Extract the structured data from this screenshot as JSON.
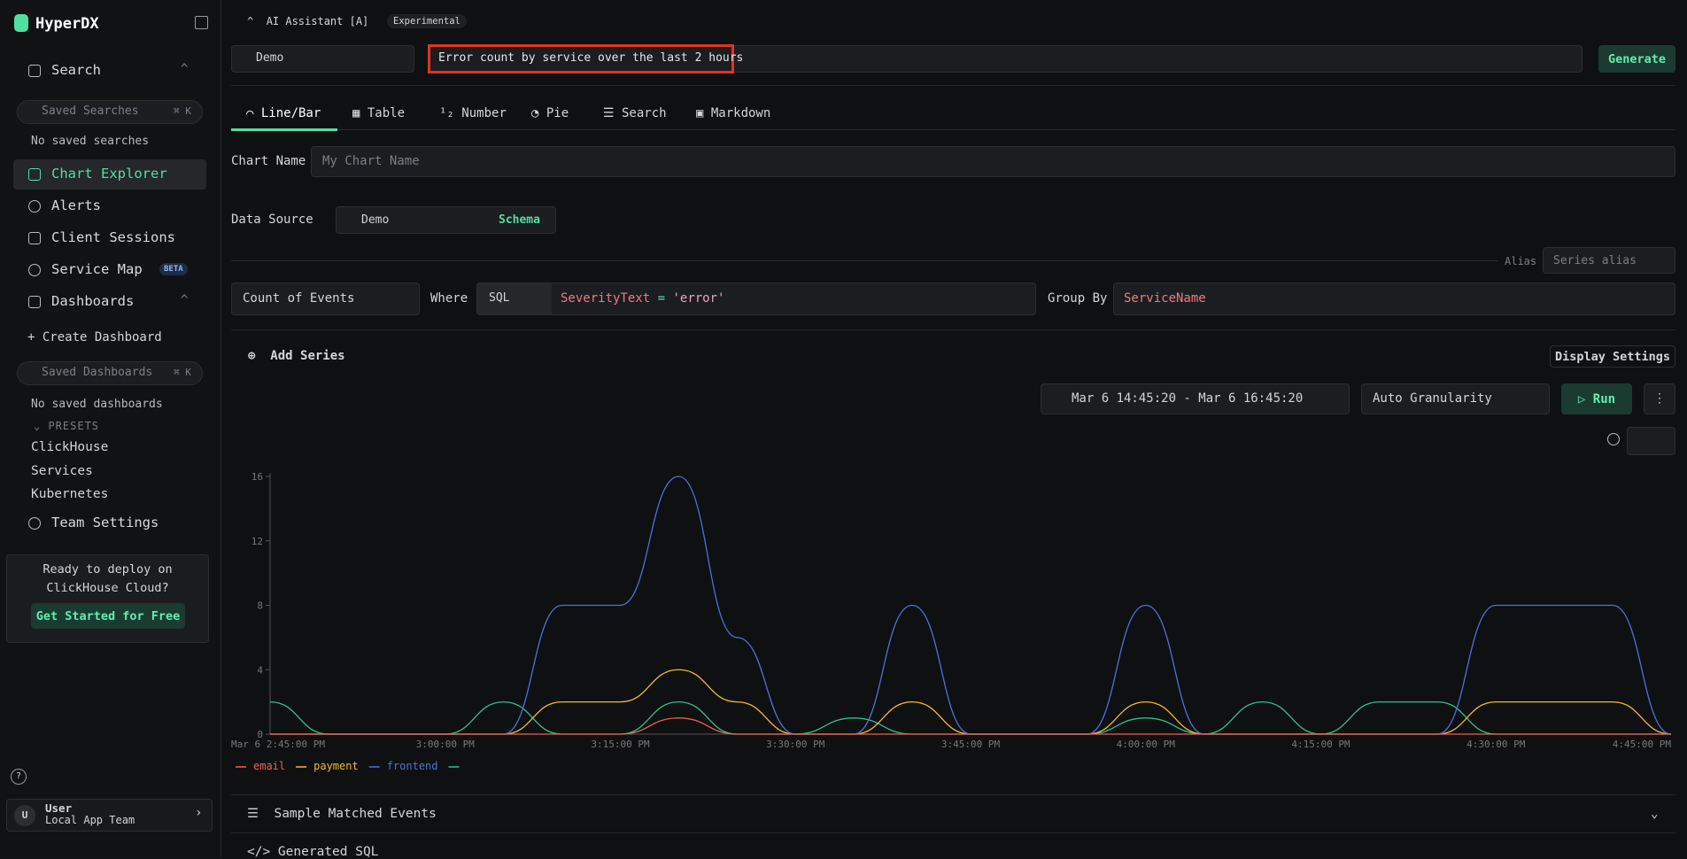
{
  "sidebar": {
    "brand": "HyperDX",
    "search": "Search",
    "saved_searches_placeholder": "Saved Searches",
    "saved_searches_shortcut": "⌘ K",
    "no_saved_searches": "No saved searches",
    "chart_explorer": "Chart Explorer",
    "alerts": "Alerts",
    "client_sessions": "Client Sessions",
    "service_map": "Service Map",
    "service_map_badge": "BETA",
    "dashboards": "Dashboards",
    "create_dashboard": "+ Create Dashboard",
    "saved_dashboards_placeholder": "Saved Dashboards",
    "saved_dashboards_shortcut": "⌘ K",
    "no_saved_dashboards": "No saved dashboards",
    "presets": "PRESETS",
    "preset_items": [
      "ClickHouse",
      "Services",
      "Kubernetes"
    ],
    "team_settings": "Team Settings",
    "promo": "Ready to deploy on ClickHouse Cloud?",
    "promo_button": "Get Started for Free",
    "user_initial": "U",
    "user_name": "User",
    "user_team": "Local App Team"
  },
  "assistant": {
    "title": "AI Assistant [A]",
    "badge": "Experimental",
    "source": "Demo",
    "prompt": "Error count by service over the last 2 hours",
    "generate": "Generate"
  },
  "tabs": [
    "Line/Bar",
    "Table",
    "Number",
    "Pie",
    "Search",
    "Markdown"
  ],
  "form": {
    "chart_name_label": "Chart Name",
    "chart_name_placeholder": "My Chart Name",
    "data_source_label": "Data Source",
    "data_source": "Demo",
    "schema": "Schema",
    "alias_label": "Alias",
    "alias_placeholder": "Series alias",
    "aggregation": "Count of Events",
    "where_label": "Where",
    "where_lang": "SQL",
    "where_field": "SeverityText",
    "where_op": "=",
    "where_value": "'error'",
    "group_by_label": "Group By",
    "group_by": "ServiceName",
    "add_series": "Add Series",
    "display_settings": "Display Settings",
    "time_range": "Mar 6 14:45:20 - Mar 6 16:45:20",
    "granularity": "Auto Granularity",
    "run": "Run"
  },
  "chart_data": {
    "type": "line",
    "smooth": true,
    "categories": [
      "Mar 6 2:45:00 PM",
      null,
      null,
      "3:00:00 PM",
      null,
      null,
      "3:15:00 PM",
      null,
      null,
      "3:30:00 PM",
      null,
      null,
      "3:45:00 PM",
      null,
      null,
      "4:00:00 PM",
      null,
      null,
      "4:15:00 PM",
      null,
      null,
      "4:30:00 PM",
      null,
      null,
      "4:45:00 PM"
    ],
    "ylim": [
      0,
      16
    ],
    "yticks": [
      0,
      4,
      8,
      12,
      16
    ],
    "series": [
      {
        "name": "email",
        "color": "#f0604f",
        "values": [
          0,
          0,
          0,
          0,
          0,
          0,
          0,
          1,
          0,
          0,
          0,
          0,
          0,
          0,
          0,
          0,
          0,
          0,
          0,
          0,
          0,
          0,
          0,
          0,
          0
        ]
      },
      {
        "name": "payment",
        "color": "#f2b92c",
        "values": [
          0,
          0,
          0,
          0,
          0,
          2,
          2,
          4,
          2,
          0,
          0,
          2,
          0,
          0,
          0,
          2,
          0,
          0,
          0,
          0,
          0,
          2,
          2,
          2,
          0
        ]
      },
      {
        "name": "frontend",
        "color": "#4c72d9",
        "values": [
          0,
          0,
          0,
          0,
          0,
          8,
          8,
          16,
          6,
          0,
          0,
          8,
          0,
          0,
          0,
          8,
          0,
          0,
          0,
          0,
          0,
          8,
          8,
          8,
          0
        ]
      },
      {
        "name": null,
        "color": "#2fbf8f",
        "values": [
          2,
          0,
          0,
          0,
          2,
          0,
          0,
          2,
          0,
          0,
          1,
          0,
          0,
          0,
          0,
          1,
          0,
          2,
          0,
          2,
          2,
          0,
          0,
          0,
          0
        ]
      }
    ]
  },
  "sections": {
    "sample_events": "Sample Matched Events",
    "generated_sql": "Generated SQL"
  }
}
